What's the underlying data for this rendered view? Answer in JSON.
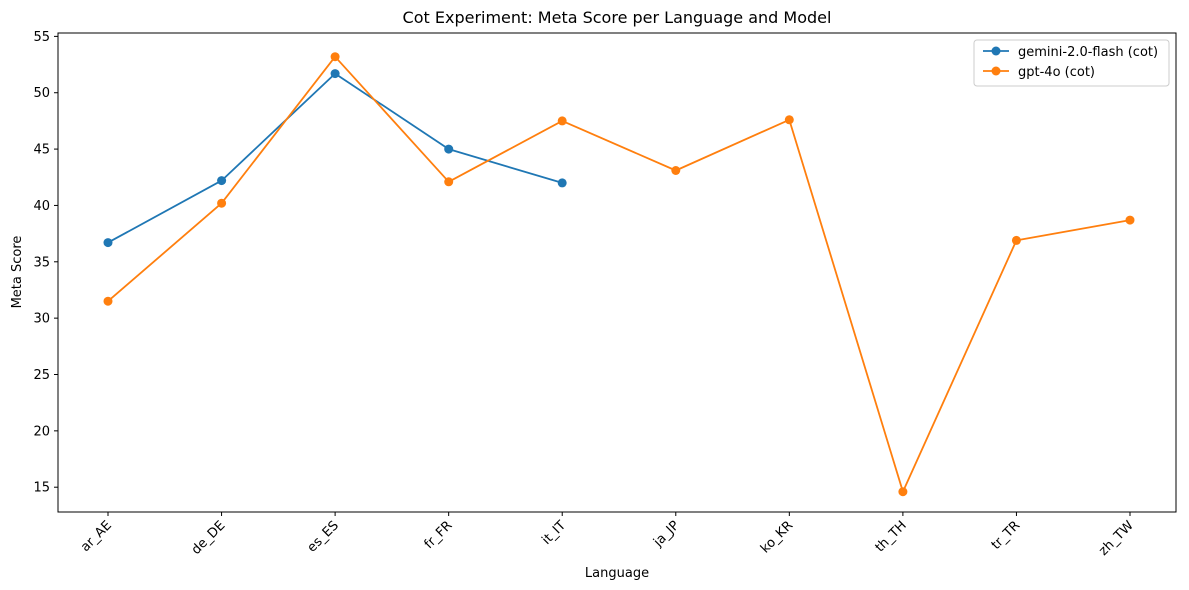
{
  "chart_data": {
    "type": "line",
    "title": "Cot Experiment: Meta Score per Language and Model",
    "xlabel": "Language",
    "ylabel": "Meta Score",
    "categories": [
      "ar_AE",
      "de_DE",
      "es_ES",
      "fr_FR",
      "it_IT",
      "ja_JP",
      "ko_KR",
      "th_TH",
      "tr_TR",
      "zh_TW"
    ],
    "ylim": [
      12.8,
      55.3
    ],
    "yticks": [
      "15",
      "20",
      "25",
      "30",
      "35",
      "40",
      "45",
      "50",
      "55"
    ],
    "grid": false,
    "legend_position": "top-right",
    "series": [
      {
        "name": "gemini-2.0-flash (cot)",
        "color": "#1f77b4",
        "values": [
          36.7,
          42.2,
          51.7,
          45.0,
          42.0,
          null,
          null,
          null,
          null,
          null
        ]
      },
      {
        "name": "gpt-4o (cot)",
        "color": "#ff7f0e",
        "values": [
          31.5,
          40.2,
          53.2,
          42.1,
          47.5,
          43.1,
          47.6,
          14.6,
          36.9,
          38.7
        ]
      }
    ]
  }
}
